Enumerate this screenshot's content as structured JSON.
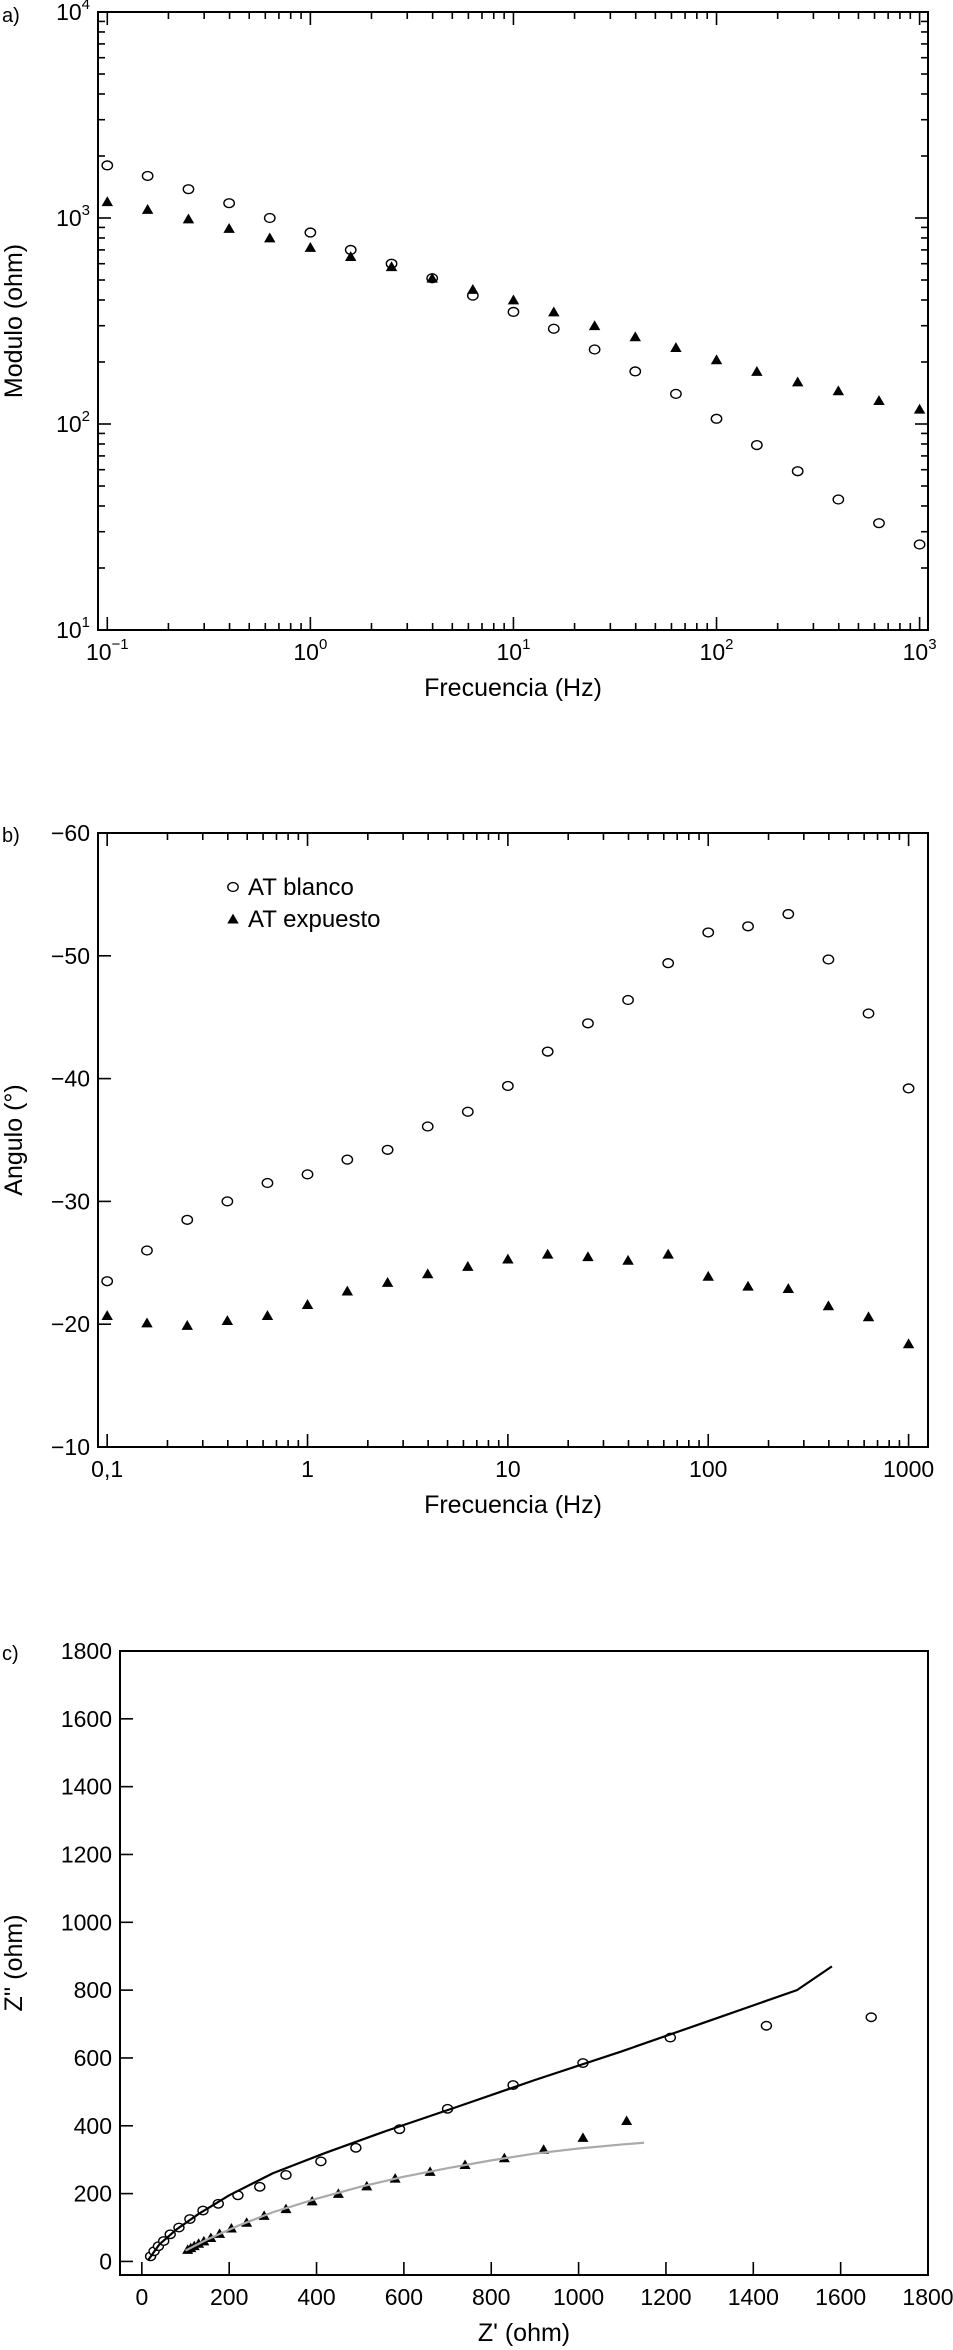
{
  "chart_data": [
    {
      "type": "scatter",
      "panel_label": "a)",
      "xlabel": "Frecuencia (Hz)",
      "ylabel": "Modulo (ohm)",
      "x_scale": "log",
      "y_scale": "log",
      "xlim": [
        0.09,
        1100
      ],
      "ylim": [
        10,
        10000
      ],
      "xticks": [
        {
          "value": 0.1,
          "base": "10",
          "exp": "−1"
        },
        {
          "value": 1,
          "base": "10",
          "exp": "0"
        },
        {
          "value": 10,
          "base": "10",
          "exp": "1"
        },
        {
          "value": 100,
          "base": "10",
          "exp": "2"
        },
        {
          "value": 1000,
          "base": "10",
          "exp": "3"
        }
      ],
      "yticks": [
        {
          "value": 10,
          "base": "10",
          "exp": "1"
        },
        {
          "value": 100,
          "base": "10",
          "exp": "2"
        },
        {
          "value": 1000,
          "base": "10",
          "exp": "3"
        },
        {
          "value": 10000,
          "base": "10",
          "exp": "4"
        }
      ],
      "series": [
        {
          "marker": "circle",
          "x": [
            0.1,
            0.158,
            0.251,
            0.398,
            0.631,
            1,
            1.58,
            2.51,
            3.98,
            6.31,
            10,
            15.8,
            25.1,
            39.8,
            63.1,
            100,
            158,
            251,
            398,
            631,
            1000
          ],
          "y": [
            1800,
            1600,
            1380,
            1180,
            1000,
            850,
            700,
            600,
            510,
            420,
            350,
            290,
            230,
            180,
            140,
            106,
            79,
            59,
            43,
            33,
            26
          ]
        },
        {
          "marker": "triangle",
          "x": [
            0.1,
            0.158,
            0.251,
            0.398,
            0.631,
            1,
            1.58,
            2.51,
            3.98,
            6.31,
            10,
            15.8,
            25.1,
            39.8,
            63.1,
            100,
            158,
            251,
            398,
            631,
            1000
          ],
          "y": [
            1200,
            1100,
            990,
            890,
            800,
            720,
            650,
            580,
            510,
            450,
            400,
            350,
            300,
            265,
            235,
            205,
            180,
            160,
            145,
            130,
            118
          ]
        }
      ]
    },
    {
      "type": "scatter",
      "panel_label": "b)",
      "xlabel": "Frecuencia (Hz)",
      "ylabel": "Angulo (°)",
      "x_scale": "log",
      "xlim": [
        0.09,
        1250
      ],
      "ylim": [
        -60,
        -10
      ],
      "y_inverted": true,
      "xticks": [
        {
          "value": 0.1,
          "label": "0,1"
        },
        {
          "value": 1,
          "label": "1"
        },
        {
          "value": 10,
          "label": "10"
        },
        {
          "value": 100,
          "label": "100"
        },
        {
          "value": 1000,
          "label": "1000"
        }
      ],
      "yticks": [
        {
          "value": -60,
          "label": "−60"
        },
        {
          "value": -50,
          "label": "−50"
        },
        {
          "value": -40,
          "label": "−40"
        },
        {
          "value": -30,
          "label": "−30"
        },
        {
          "value": -20,
          "label": "−20"
        },
        {
          "value": -10,
          "label": "−10"
        }
      ],
      "legend": {
        "placement": "top-left"
      },
      "series": [
        {
          "name": "AT blanco",
          "marker": "circle",
          "x": [
            0.1,
            0.158,
            0.251,
            0.398,
            0.631,
            1,
            1.58,
            2.51,
            3.98,
            6.31,
            10,
            15.8,
            25.1,
            39.8,
            63.1,
            100,
            158,
            251,
            398,
            631,
            1000
          ],
          "y": [
            -23.5,
            -26,
            -28.5,
            -30,
            -31.5,
            -32.2,
            -33.4,
            -34.2,
            -36.1,
            -37.3,
            -39.4,
            -42.2,
            -44.5,
            -46.4,
            -49.4,
            -51.9,
            -52.4,
            -53.4,
            -49.7,
            -45.3,
            -39.2
          ]
        },
        {
          "name": "AT expuesto",
          "marker": "triangle",
          "x": [
            0.1,
            0.158,
            0.251,
            0.398,
            0.631,
            1,
            1.58,
            2.51,
            3.98,
            6.31,
            10,
            15.8,
            25.1,
            39.8,
            63.1,
            100,
            158,
            251,
            398,
            631,
            1000
          ],
          "y": [
            -20.7,
            -20.1,
            -19.9,
            -20.3,
            -20.7,
            -21.6,
            -22.7,
            -23.4,
            -24.1,
            -24.7,
            -25.3,
            -25.7,
            -25.5,
            -25.2,
            -25.7,
            -23.9,
            -23.1,
            -22.9,
            -21.5,
            -20.6,
            -18.4
          ]
        }
      ]
    },
    {
      "type": "scatter",
      "panel_label": "c)",
      "xlabel": "Z' (ohm)",
      "ylabel": "Z'' (ohm)",
      "xlim": [
        -50,
        1800
      ],
      "ylim": [
        -40,
        1800
      ],
      "xticks": [
        {
          "value": 0,
          "label": "0"
        },
        {
          "value": 200,
          "label": "200"
        },
        {
          "value": 400,
          "label": "400"
        },
        {
          "value": 600,
          "label": "600"
        },
        {
          "value": 800,
          "label": "800"
        },
        {
          "value": 1000,
          "label": "1000"
        },
        {
          "value": 1200,
          "label": "1200"
        },
        {
          "value": 1400,
          "label": "1400"
        },
        {
          "value": 1600,
          "label": "1600"
        },
        {
          "value": 1800,
          "label": "1800"
        }
      ],
      "yticks": [
        {
          "value": 0,
          "label": "0"
        },
        {
          "value": 200,
          "label": "200"
        },
        {
          "value": 400,
          "label": "400"
        },
        {
          "value": 600,
          "label": "600"
        },
        {
          "value": 800,
          "label": "800"
        },
        {
          "value": 1000,
          "label": "1000"
        },
        {
          "value": 1200,
          "label": "1200"
        },
        {
          "value": 1400,
          "label": "1400"
        },
        {
          "value": 1600,
          "label": "1600"
        },
        {
          "value": 1800,
          "label": "1800"
        }
      ],
      "series": [
        {
          "marker": "circle",
          "x": [
            20,
            28,
            38,
            50,
            65,
            85,
            110,
            140,
            175,
            220,
            270,
            330,
            410,
            490,
            590,
            700,
            850,
            1010,
            1210,
            1430,
            1670
          ],
          "y": [
            15,
            30,
            45,
            60,
            80,
            100,
            125,
            150,
            170,
            195,
            220,
            255,
            295,
            335,
            390,
            450,
            520,
            585,
            660,
            695,
            720
          ]
        },
        {
          "marker": "triangle",
          "x": [
            105,
            112,
            120,
            130,
            142,
            158,
            178,
            205,
            240,
            280,
            330,
            390,
            450,
            515,
            580,
            660,
            740,
            830,
            920,
            1010,
            1110
          ],
          "y": [
            35,
            40,
            46,
            53,
            60,
            70,
            82,
            98,
            115,
            135,
            155,
            178,
            200,
            222,
            245,
            265,
            285,
            305,
            330,
            365,
            415
          ]
        },
        {
          "marker": "line",
          "color": "#000000",
          "x": [
            15,
            40,
            80,
            130,
            200,
            300,
            420,
            560,
            720,
            900,
            1100,
            1300,
            1500,
            1580
          ],
          "y": [
            5,
            50,
            95,
            140,
            195,
            260,
            320,
            385,
            455,
            535,
            620,
            710,
            800,
            870
          ]
        },
        {
          "marker": "line",
          "color": "#aaaaaa",
          "x": [
            100,
            150,
            220,
            300,
            400,
            500,
            600,
            700,
            800,
            900,
            1000,
            1100,
            1150
          ],
          "y": [
            32,
            65,
            105,
            145,
            185,
            220,
            250,
            275,
            298,
            318,
            333,
            345,
            350
          ]
        }
      ]
    }
  ]
}
